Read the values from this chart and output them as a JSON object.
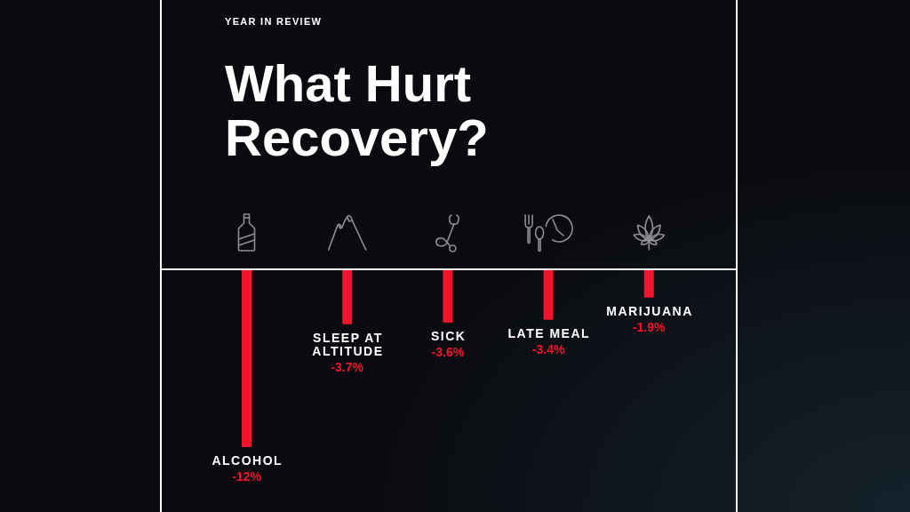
{
  "chart_data": {
    "type": "bar",
    "title": "What Hurt Recovery?",
    "subtitle": "YEAR IN REVIEW",
    "categories": [
      "ALCOHOL",
      "SLEEP AT ALTITUDE",
      "SICK",
      "LATE MEAL",
      "MARIJUANA"
    ],
    "values": [
      -12,
      -3.7,
      -3.6,
      -3.4,
      -1.9
    ],
    "color": "#f0142d",
    "value_labels": [
      "-12%",
      "-3.7%",
      "-3.6%",
      "-3.4%",
      "-1.9%"
    ],
    "tick_labels": false
  }
}
